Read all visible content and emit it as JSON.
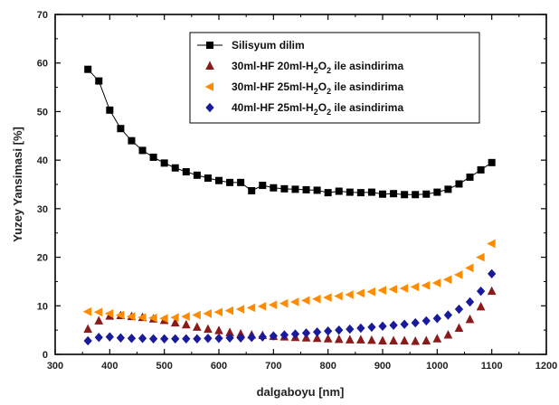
{
  "chart_data": {
    "type": "line",
    "xlabel": "dalgaboyu [nm]",
    "ylabel": "Yuzey Yansimasi [%]",
    "xlim": [
      300,
      1200
    ],
    "ylim": [
      0,
      70
    ],
    "xticks": [
      300,
      400,
      500,
      600,
      700,
      800,
      900,
      1000,
      1100,
      1200
    ],
    "yticks": [
      0,
      10,
      20,
      30,
      40,
      50,
      60,
      70
    ],
    "legend_position": "top-right",
    "series": [
      {
        "name": "Silisyum dilim",
        "legend": {
          "pre": "Silisyum dilim",
          "sub1": "",
          "mid": "",
          "sub2": "",
          "post": ""
        },
        "color": "#000000",
        "marker": "square",
        "connected": true,
        "x": [
          360,
          380,
          400,
          420,
          440,
          460,
          480,
          500,
          520,
          540,
          560,
          580,
          600,
          620,
          640,
          660,
          680,
          700,
          720,
          740,
          760,
          780,
          800,
          820,
          840,
          860,
          880,
          900,
          920,
          940,
          960,
          980,
          1000,
          1020,
          1040,
          1060,
          1080,
          1100
        ],
        "y": [
          58.7,
          56.3,
          50.3,
          46.5,
          44.0,
          42.0,
          40.6,
          39.4,
          38.4,
          37.6,
          36.9,
          36.3,
          35.8,
          35.4,
          35.4,
          33.7,
          34.8,
          34.3,
          34.1,
          34.0,
          33.9,
          33.8,
          33.3,
          33.6,
          33.4,
          33.3,
          33.4,
          33.0,
          33.1,
          32.9,
          32.9,
          33.0,
          33.4,
          34.0,
          35.1,
          36.5,
          38.0,
          39.5
        ]
      },
      {
        "name": "30ml-HF 20ml-H2O2 ile asindirima",
        "legend": {
          "pre": "30ml-HF 20ml-H",
          "sub1": "2",
          "mid": "O",
          "sub2": "2",
          "post": " ile asindirima"
        },
        "color": "#8b1a1a",
        "marker": "triangle-up",
        "connected": false,
        "x": [
          360,
          380,
          400,
          420,
          440,
          460,
          480,
          500,
          520,
          540,
          560,
          580,
          600,
          620,
          640,
          660,
          680,
          700,
          720,
          740,
          760,
          780,
          800,
          820,
          840,
          860,
          880,
          900,
          920,
          940,
          960,
          980,
          1000,
          1020,
          1040,
          1060,
          1080,
          1100
        ],
        "y": [
          5.2,
          6.9,
          7.9,
          8.0,
          7.8,
          7.6,
          7.3,
          7.0,
          6.5,
          6.1,
          5.6,
          5.2,
          4.9,
          4.5,
          4.2,
          4.0,
          3.9,
          3.7,
          3.6,
          3.5,
          3.4,
          3.3,
          3.2,
          3.1,
          3.0,
          3.0,
          2.9,
          2.8,
          2.8,
          2.8,
          2.7,
          2.8,
          3.2,
          4.0,
          5.4,
          7.2,
          9.8,
          13.0
        ]
      },
      {
        "name": "30ml-HF 25ml-H2O2 ile asindirima",
        "legend": {
          "pre": "30ml-HF 25ml-H",
          "sub1": "2",
          "mid": "O",
          "sub2": "2",
          "post": " ile asindirima"
        },
        "color": "#ff8c00",
        "marker": "triangle-left",
        "connected": false,
        "x": [
          360,
          380,
          400,
          420,
          440,
          460,
          480,
          500,
          520,
          540,
          560,
          580,
          600,
          620,
          640,
          660,
          680,
          700,
          720,
          740,
          760,
          780,
          800,
          820,
          840,
          860,
          880,
          900,
          920,
          940,
          960,
          980,
          1000,
          1020,
          1040,
          1060,
          1080,
          1100
        ],
        "y": [
          8.8,
          8.7,
          8.4,
          8.1,
          7.8,
          7.6,
          7.5,
          7.4,
          7.6,
          7.8,
          8.1,
          8.4,
          8.7,
          9.0,
          9.3,
          9.6,
          9.9,
          10.2,
          10.5,
          10.8,
          11.1,
          11.4,
          11.7,
          12.0,
          12.3,
          12.6,
          12.9,
          13.2,
          13.4,
          13.6,
          13.9,
          14.2,
          14.7,
          15.4,
          16.4,
          17.8,
          20.0,
          22.8
        ]
      },
      {
        "name": "40ml-HF 25ml-H2O2 ile asindirima",
        "legend": {
          "pre": "40ml-HF 25ml-H",
          "sub1": "2",
          "mid": "O",
          "sub2": "2",
          "post": " ile asindirima"
        },
        "color": "#1a1a9c",
        "marker": "diamond",
        "connected": false,
        "x": [
          360,
          380,
          400,
          420,
          440,
          460,
          480,
          500,
          520,
          540,
          560,
          580,
          600,
          620,
          640,
          660,
          680,
          700,
          720,
          740,
          760,
          780,
          800,
          820,
          840,
          860,
          880,
          900,
          920,
          940,
          960,
          980,
          1000,
          1020,
          1040,
          1060,
          1080,
          1100
        ],
        "y": [
          2.8,
          3.5,
          3.6,
          3.4,
          3.3,
          3.3,
          3.2,
          3.2,
          3.2,
          3.2,
          3.2,
          3.3,
          3.3,
          3.4,
          3.4,
          3.5,
          3.6,
          3.8,
          4.0,
          4.2,
          4.4,
          4.6,
          4.8,
          5.0,
          5.2,
          5.4,
          5.6,
          5.8,
          6.0,
          6.2,
          6.5,
          6.9,
          7.4,
          8.1,
          9.3,
          10.8,
          13.0,
          16.6
        ]
      }
    ]
  }
}
